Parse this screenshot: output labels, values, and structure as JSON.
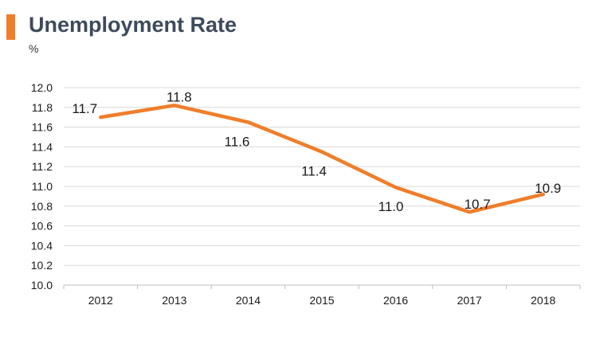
{
  "header": {
    "title": "Unemployment Rate",
    "unit": "%"
  },
  "colors": {
    "accent": "#f07d2a",
    "line": "#f07d2a",
    "grid": "#d9d9d9"
  },
  "chart_data": {
    "type": "line",
    "title": "Unemployment Rate",
    "ylabel": "%",
    "xlabel": "",
    "categories": [
      "2012",
      "2013",
      "2014",
      "2015",
      "2016",
      "2017",
      "2018"
    ],
    "series": [
      {
        "values": [
          11.7,
          11.82,
          11.65,
          11.35,
          10.99,
          10.74,
          10.92
        ],
        "labels": [
          "11.7",
          "11.8",
          "11.6",
          "11.4",
          "11.0",
          "10.7",
          "10.9"
        ]
      }
    ],
    "ylim": [
      10.0,
      12.0
    ],
    "yticks": [
      "10.0",
      "10.2",
      "10.4",
      "10.6",
      "10.8",
      "11.0",
      "11.2",
      "11.4",
      "11.6",
      "11.8",
      "12.0"
    ],
    "grid": true,
    "legend": "none"
  }
}
